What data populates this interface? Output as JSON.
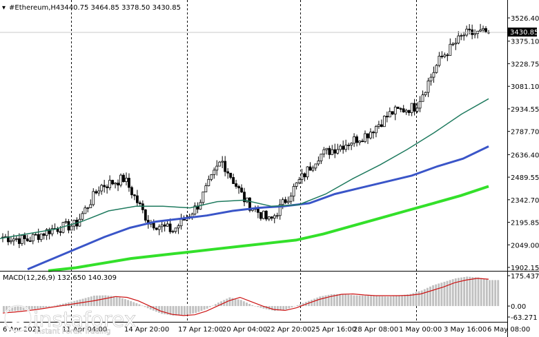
{
  "header": {
    "symbol": "#Ethereum,H4",
    "ohlc": "3440.75 3464.85 3378.50 3430.85"
  },
  "price_axis": {
    "ticks": [
      "3526.40",
      "3375.10",
      "3228.75",
      "3081.10",
      "2934.55",
      "2787.70",
      "2636.40",
      "2489.55",
      "2342.70",
      "2195.85",
      "2049.00",
      "1902.15"
    ],
    "current": "3430.85"
  },
  "time_axis": {
    "labels": [
      "6 Apr 2021",
      "11 Apr 04:00",
      "14 Apr 20:00",
      "17 Apr 12:00",
      "20 Apr 04:00",
      "22 Apr 20:00",
      "25 Apr 16:00",
      "28 Apr 08:00",
      "1 May 00:00",
      "3 May 16:00",
      "6 May 08:00"
    ]
  },
  "macd": {
    "label": "MACD(12,26,9) 132.650 140.309",
    "ticks": [
      "175.437",
      "0.00",
      "-63.271"
    ]
  },
  "watermark": {
    "brand": "instaforex",
    "tagline": "Instant Forex Trading"
  },
  "colors": {
    "background": "#ffffff",
    "candles": "#000000",
    "ma_fast": "#1e7a5e",
    "ma_mid": "#3a55c8",
    "ma_slow": "#33e02a",
    "macd_hist": "#c0c0c0",
    "macd_signal": "#cc1111",
    "grid_vertical": "#000000"
  },
  "chart_data": [
    {
      "type": "candlestick",
      "title": "#Ethereum,H4",
      "x_labels": [
        "6 Apr 2021",
        "11 Apr 04:00",
        "14 Apr 20:00",
        "17 Apr 12:00",
        "20 Apr 04:00",
        "22 Apr 20:00",
        "25 Apr 16:00",
        "28 Apr 08:00",
        "1 May 00:00",
        "3 May 16:00",
        "6 May 08:00"
      ],
      "ylim": [
        1902.15,
        3526.4
      ],
      "y_ticks": [
        3526.4,
        3375.1,
        3228.75,
        3081.1,
        2934.55,
        2787.7,
        2636.4,
        2489.55,
        2342.7,
        2195.85,
        2049.0,
        1902.15
      ],
      "last_close": 3430.85,
      "close_path": [
        {
          "x": "6 Apr 2021",
          "y": 2100
        },
        {
          "x": "9 Apr",
          "y": 2080
        },
        {
          "x": "11 Apr 04:00",
          "y": 2150
        },
        {
          "x": "13 Apr",
          "y": 2180
        },
        {
          "x": "14 Apr 20:00",
          "y": 2430
        },
        {
          "x": "16 Apr",
          "y": 2480
        },
        {
          "x": "17 Apr 12:00",
          "y": 2200
        },
        {
          "x": "19 Apr",
          "y": 2140
        },
        {
          "x": "20 Apr 04:00",
          "y": 2300
        },
        {
          "x": "21 Apr",
          "y": 2600
        },
        {
          "x": "22 Apr 20:00",
          "y": 2330
        },
        {
          "x": "24 Apr",
          "y": 2200
        },
        {
          "x": "25 Apr 16:00",
          "y": 2420
        },
        {
          "x": "27 Apr",
          "y": 2630
        },
        {
          "x": "28 Apr 08:00",
          "y": 2700
        },
        {
          "x": "30 Apr",
          "y": 2770
        },
        {
          "x": "1 May 00:00",
          "y": 2910
        },
        {
          "x": "2 May",
          "y": 2950
        },
        {
          "x": "3 May 16:00",
          "y": 3260
        },
        {
          "x": "5 May",
          "y": 3420
        },
        {
          "x": "6 May 08:00",
          "y": 3430.85
        }
      ],
      "series": [
        {
          "name": "",
          "color": "#1e7a5e",
          "values": [
            2090,
            2120,
            2150,
            2200,
            2270,
            2300,
            2300,
            2290,
            2330,
            2340,
            2300,
            2310,
            2380,
            2480,
            2570,
            2670,
            2780,
            2900,
            3000
          ]
        },
        {
          "name": "",
          "color": "#3a55c8",
          "values": [
            1890,
            1960,
            2030,
            2100,
            2160,
            2200,
            2220,
            2240,
            2270,
            2290,
            2300,
            2320,
            2380,
            2420,
            2460,
            2500,
            2560,
            2610,
            2690
          ]
        },
        {
          "name": "",
          "color": "#33e02a",
          "values": [
            1880,
            1900,
            1930,
            1960,
            1980,
            2000,
            2020,
            2040,
            2060,
            2080,
            2120,
            2170,
            2220,
            2270,
            2320,
            2370,
            2430
          ]
        }
      ]
    },
    {
      "type": "bar",
      "title": "MACD(12,26,9) 132.650 140.309",
      "ylim": [
        -63.271,
        175.437
      ],
      "y_ticks": [
        175.437,
        0.0,
        -63.271
      ],
      "histogram": [
        -35,
        -28,
        -22,
        -15,
        -5,
        10,
        25,
        42,
        60,
        62,
        55,
        35,
        10,
        -20,
        -45,
        -55,
        -52,
        -40,
        -15,
        20,
        50,
        35,
        5,
        -15,
        -28,
        -20,
        5,
        30,
        55,
        68,
        70,
        62,
        60,
        58,
        55,
        60,
        70,
        90,
        120,
        140,
        160,
        170,
        165,
        150
      ],
      "signal": [
        -40,
        -35,
        -28,
        -20,
        -10,
        0,
        10,
        20,
        30,
        42,
        55,
        50,
        30,
        0,
        -30,
        -48,
        -55,
        -50,
        -30,
        0,
        30,
        50,
        25,
        0,
        -20,
        -25,
        -10,
        15,
        38,
        55,
        68,
        70,
        64,
        60,
        60,
        60,
        62,
        70,
        90,
        110,
        135,
        150,
        160,
        155
      ]
    }
  ]
}
